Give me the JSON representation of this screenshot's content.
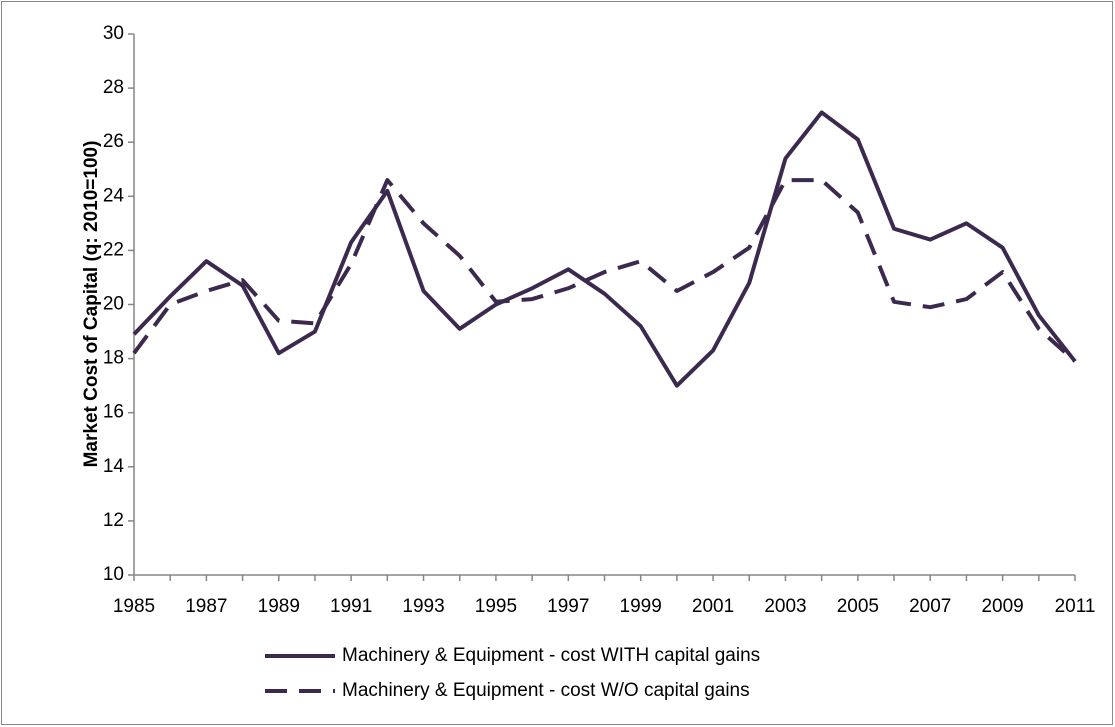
{
  "chart_data": {
    "type": "line",
    "y_label": "Market Cost of Capital (q: 2010=100)",
    "x": [
      1985,
      1986,
      1987,
      1988,
      1989,
      1990,
      1991,
      1992,
      1993,
      1994,
      1995,
      1996,
      1997,
      1998,
      1999,
      2000,
      2001,
      2002,
      2003,
      2004,
      2005,
      2006,
      2007,
      2008,
      2009,
      2010,
      2011
    ],
    "series": [
      {
        "name": "Machinery & Equipment - cost WITH capital gains",
        "color": "#3b2a4e",
        "dash": "solid",
        "values": [
          18.9,
          20.3,
          21.6,
          20.7,
          18.2,
          19.0,
          22.3,
          24.2,
          20.5,
          19.1,
          20.0,
          20.6,
          21.3,
          20.4,
          19.2,
          17.0,
          18.3,
          20.8,
          25.4,
          27.1,
          26.1,
          22.8,
          22.4,
          23.0,
          22.1,
          19.6,
          17.9
        ]
      },
      {
        "name": "Machinery & Equipment - cost W/O capital gains",
        "color": "#3b2a4e",
        "dash": "dashed",
        "values": [
          18.2,
          20.0,
          20.5,
          20.9,
          19.4,
          19.3,
          21.5,
          24.6,
          23.0,
          21.8,
          20.1,
          20.2,
          20.6,
          21.2,
          21.6,
          20.5,
          21.2,
          22.1,
          24.6,
          24.6,
          23.4,
          20.1,
          19.9,
          20.2,
          21.2,
          19.1,
          17.9
        ]
      }
    ],
    "xlim": [
      1985,
      2011
    ],
    "xticks": [
      1985,
      1987,
      1989,
      1991,
      1993,
      1995,
      1997,
      1999,
      2001,
      2003,
      2005,
      2007,
      2009,
      2011
    ],
    "ylim": [
      10,
      30
    ],
    "yticks": [
      10,
      12,
      14,
      16,
      18,
      20,
      22,
      24,
      26,
      28,
      30
    ],
    "grid": false,
    "legend": "bottom"
  }
}
